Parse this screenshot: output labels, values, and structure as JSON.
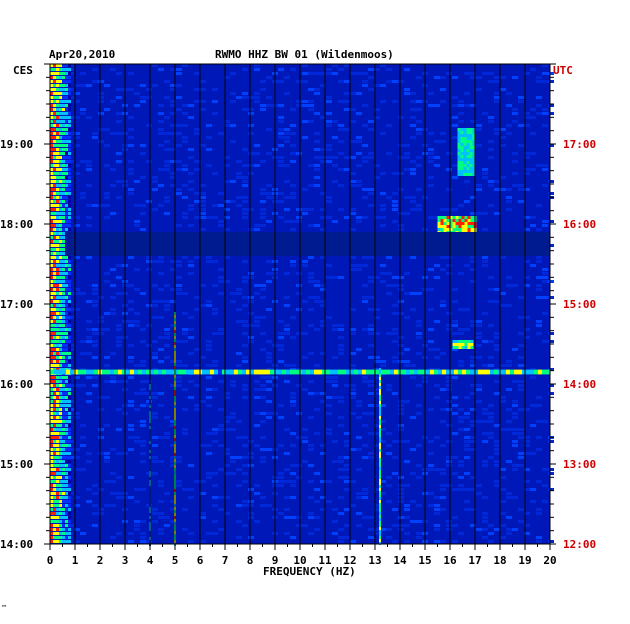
{
  "header": {
    "date": "Apr20,2010",
    "station": "RWMO HHZ BW 01 (Wildenmoos)"
  },
  "left_tz": "CES",
  "right_tz": "UTC",
  "footer_mark": "™",
  "chart_data": {
    "type": "heatmap",
    "title": "RWMO HHZ BW 01 (Wildenmoos)",
    "date": "Apr20,2010",
    "xlabel": "FREQUENCY (HZ)",
    "xlim": [
      0,
      20
    ],
    "x_ticks": [
      "0",
      "1",
      "2",
      "3",
      "4",
      "5",
      "6",
      "7",
      "8",
      "9",
      "10",
      "11",
      "12",
      "13",
      "14",
      "15",
      "16",
      "17",
      "18",
      "19",
      "20"
    ],
    "left_axis": {
      "label": "CES",
      "range_hours": [
        14,
        20
      ],
      "ticks": [
        "19:00",
        "18:00",
        "17:00",
        "16:00",
        "15:00",
        "14:00"
      ]
    },
    "right_axis": {
      "label": "UTC",
      "range_hours": [
        12,
        18
      ],
      "ticks": [
        "17:00",
        "16:00",
        "15:00",
        "14:00",
        "13:00",
        "12:00"
      ]
    },
    "grid": true,
    "colormap": [
      "#0000a0",
      "#0030ff",
      "#00c0ff",
      "#00ff80",
      "#ffff00",
      "#ff2000"
    ],
    "background_color": "#0018b8",
    "features": [
      {
        "kind": "low-frequency band",
        "freq": [
          0,
          0.8
        ],
        "time_ces": [
          14.0,
          20.0
        ],
        "level": 0.6
      },
      {
        "kind": "broadband line",
        "freq": [
          0,
          20
        ],
        "time_ces": 16.15,
        "level": 0.55
      },
      {
        "kind": "spectral line",
        "freq": 5.0,
        "time_ces": [
          14.0,
          16.9
        ],
        "level": 0.8
      },
      {
        "kind": "spectral line",
        "freq": 13.2,
        "time_ces": [
          14.0,
          16.2
        ],
        "level": 0.7
      },
      {
        "kind": "spectral line",
        "freq": 4.0,
        "time_ces": [
          14.0,
          16.0
        ],
        "level": 0.4
      },
      {
        "kind": "patch",
        "freq": [
          15.5,
          17.0
        ],
        "time_ces": [
          17.65,
          18.1
        ],
        "level": 0.9
      },
      {
        "kind": "patch",
        "freq": [
          16.3,
          17.0
        ],
        "time_ces": [
          18.6,
          19.2
        ],
        "level": 0.6
      },
      {
        "kind": "patch",
        "freq": [
          16.1,
          16.9
        ],
        "time_ces": [
          16.45,
          16.55
        ],
        "level": 0.8
      },
      {
        "kind": "quiet band",
        "freq": [
          0.6,
          20
        ],
        "time_ces": [
          17.6,
          17.9
        ],
        "level": 0.0
      }
    ]
  }
}
